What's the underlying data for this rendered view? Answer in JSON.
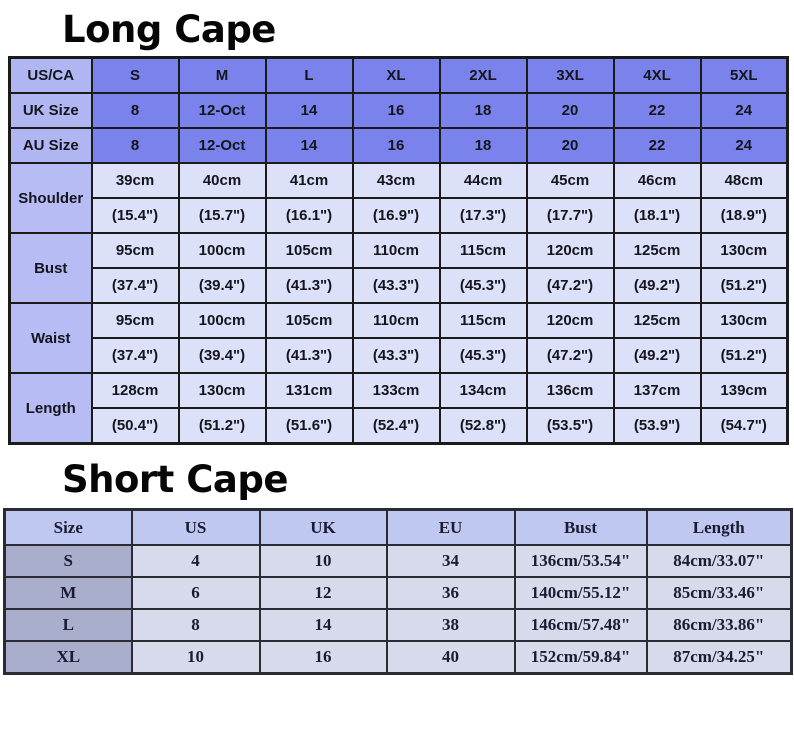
{
  "chart_data": [
    {
      "type": "table",
      "title": "Long Cape",
      "columns": [
        "US/CA",
        "S",
        "M",
        "L",
        "XL",
        "2XL",
        "3XL",
        "4XL",
        "5XL"
      ],
      "size_rows": [
        {
          "label": "UK Size",
          "cells": [
            "8",
            "12-Oct",
            "14",
            "16",
            "18",
            "20",
            "22",
            "24"
          ]
        },
        {
          "label": "AU Size",
          "cells": [
            "8",
            "12-Oct",
            "14",
            "16",
            "18",
            "20",
            "22",
            "24"
          ]
        }
      ],
      "measure_rows": [
        {
          "label": "Shoulder",
          "cm": [
            "39cm",
            "40cm",
            "41cm",
            "43cm",
            "44cm",
            "45cm",
            "46cm",
            "48cm"
          ],
          "inch": [
            "(15.4\")",
            "(15.7\")",
            "(16.1\")",
            "(16.9\")",
            "(17.3\")",
            "(17.7\")",
            "(18.1\")",
            "(18.9\")"
          ]
        },
        {
          "label": "Bust",
          "cm": [
            "95cm",
            "100cm",
            "105cm",
            "110cm",
            "115cm",
            "120cm",
            "125cm",
            "130cm"
          ],
          "inch": [
            "(37.4\")",
            "(39.4\")",
            "(41.3\")",
            "(43.3\")",
            "(45.3\")",
            "(47.2\")",
            "(49.2\")",
            "(51.2\")"
          ]
        },
        {
          "label": "Waist",
          "cm": [
            "95cm",
            "100cm",
            "105cm",
            "110cm",
            "115cm",
            "120cm",
            "125cm",
            "130cm"
          ],
          "inch": [
            "(37.4\")",
            "(39.4\")",
            "(41.3\")",
            "(43.3\")",
            "(45.3\")",
            "(47.2\")",
            "(49.2\")",
            "(51.2\")"
          ]
        },
        {
          "label": "Length",
          "cm": [
            "128cm",
            "130cm",
            "131cm",
            "133cm",
            "134cm",
            "136cm",
            "137cm",
            "139cm"
          ],
          "inch": [
            "(50.4\")",
            "(51.2\")",
            "(51.6\")",
            "(52.4\")",
            "(52.8\")",
            "(53.5\")",
            "(53.9\")",
            "(54.7\")"
          ]
        }
      ]
    },
    {
      "type": "table",
      "title": "Short Cape",
      "columns": [
        "Size",
        "US",
        "UK",
        "EU",
        "Bust",
        "Length"
      ],
      "rows": [
        [
          "S",
          "4",
          "10",
          "34",
          "136cm/53.54\"",
          "84cm/33.07\""
        ],
        [
          "M",
          "6",
          "12",
          "36",
          "140cm/55.12\"",
          "85cm/33.46\""
        ],
        [
          "L",
          "8",
          "14",
          "38",
          "146cm/57.48\"",
          "86cm/33.86\""
        ],
        [
          "XL",
          "10",
          "16",
          "40",
          "152cm/59.84\"",
          "87cm/34.25\""
        ]
      ]
    }
  ],
  "colors": {
    "long_size_header_fill": "#7a83ec",
    "long_size_label_fill": "#afb6f1",
    "long_measure_label_fill": "#b7bdf4",
    "long_measure_cell_fill": "#dce0f8",
    "long_border": "#1b1b1b",
    "short_header_fill": "#bfc8f1",
    "short_label_fill": "#a8aecc",
    "short_cell_fill": "#d7daea",
    "short_border": "#2b2b33",
    "background": "#ffffff",
    "text": "#15151d"
  }
}
